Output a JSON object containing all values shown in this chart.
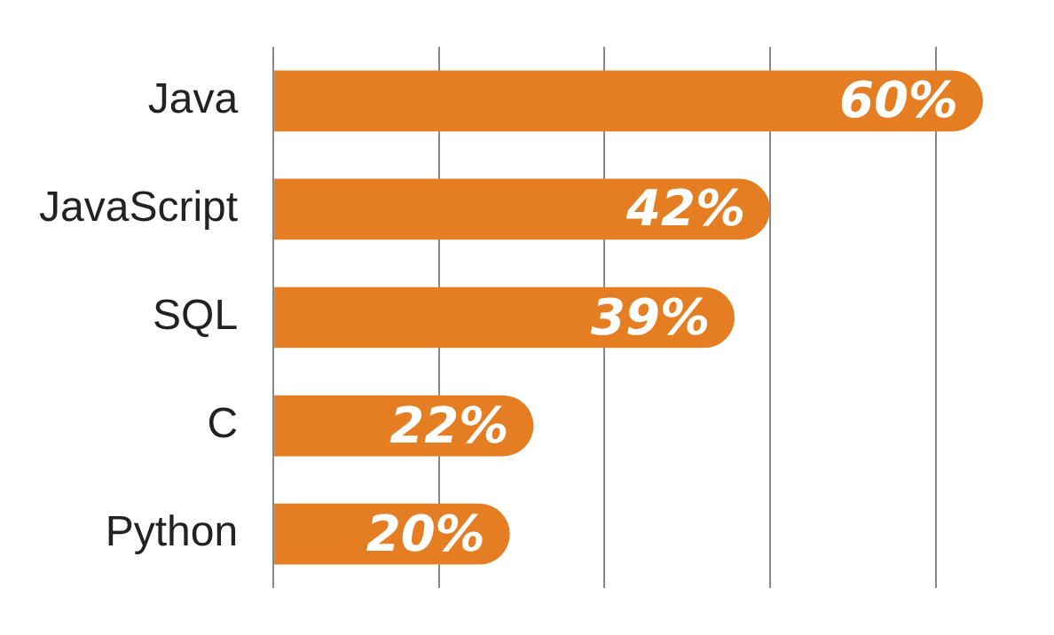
{
  "chart_data": {
    "type": "bar",
    "orientation": "horizontal",
    "categories": [
      "Java",
      "JavaScript",
      "SQL",
      "C",
      "Python"
    ],
    "values": [
      60,
      42,
      39,
      22,
      20
    ],
    "value_labels": [
      "60%",
      "42%",
      "39%",
      "22%",
      "20%"
    ],
    "color": "#e57e22",
    "xlim": [
      0,
      60
    ],
    "xticks": [
      {
        "value": 0,
        "label": null
      },
      {
        "value": 14,
        "label": null
      },
      {
        "value": 28,
        "label": null
      },
      {
        "value": 42,
        "label": null
      },
      {
        "value": 56,
        "label": null
      }
    ],
    "grid": "x",
    "legend": false
  }
}
